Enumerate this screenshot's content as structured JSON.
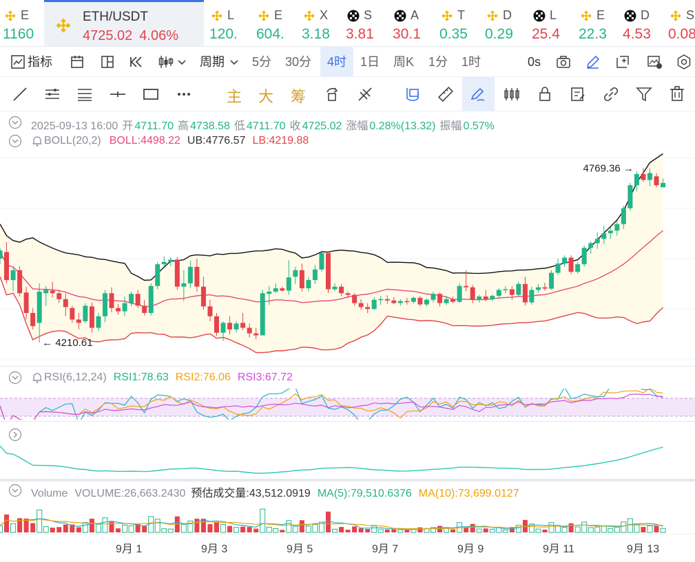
{
  "ticker": [
    {
      "name": "E",
      "price": "1160",
      "dir": "up",
      "icon": "bnb-icon"
    },
    {
      "name": "ETH/USDT",
      "price": "4725.02",
      "change": "4.06%",
      "dir": "dn",
      "icon": "bnb-icon",
      "active": true
    },
    {
      "name": "L",
      "price": "120.",
      "dir": "up",
      "icon": "bnb-icon"
    },
    {
      "name": "E",
      "price": "604.",
      "dir": "up",
      "icon": "bnb-icon"
    },
    {
      "name": "X",
      "price": "3.18",
      "dir": "up",
      "icon": "bnb-icon"
    },
    {
      "name": "S",
      "price": "3.81",
      "dir": "dn",
      "icon": "okx-icon"
    },
    {
      "name": "A",
      "price": "30.1",
      "dir": "dn",
      "icon": "okx-icon"
    },
    {
      "name": "T",
      "price": "0.35",
      "dir": "up",
      "icon": "bnb-icon"
    },
    {
      "name": "D",
      "price": "0.29",
      "dir": "up",
      "icon": "bnb-icon"
    },
    {
      "name": "L",
      "price": "25.4",
      "dir": "dn",
      "icon": "okx-icon"
    },
    {
      "name": "E",
      "price": "22.3",
      "dir": "up",
      "icon": "bnb-icon"
    },
    {
      "name": "D",
      "price": "4.53",
      "dir": "dn",
      "icon": "okx-icon"
    },
    {
      "name": "S",
      "price": "0.08",
      "dir": "dn",
      "icon": "bnb-icon"
    }
  ],
  "toolbar": {
    "indicators": "指标",
    "period": "周期",
    "intervals": [
      "5分",
      "30分",
      "4时",
      "1日",
      "周K",
      "1分",
      "1时"
    ],
    "selected_interval": "4时",
    "countdown": "0s"
  },
  "draw_tools": {
    "main": "主",
    "big": "大",
    "chips": "筹"
  },
  "ohlc": {
    "datetime": "2025-09-13 16:00",
    "open_label": "开",
    "open": "4711.70",
    "high_label": "高",
    "high": "4738.58",
    "low_label": "低",
    "low": "4711.70",
    "close_label": "收",
    "close": "4725.02",
    "change_label": "涨幅",
    "change": "0.28%(13.32)",
    "amp_label": "振幅",
    "amp": "0.57%"
  },
  "boll": {
    "name": "BOLL(20,2)",
    "mid": "BOLL:4498.22",
    "ub": "UB:4776.57",
    "lb": "LB:4219.88"
  },
  "annotations": {
    "high": "4769.36",
    "low": "4210.61"
  },
  "rsi": {
    "name": "RSI(6,12,24)",
    "rsi1": "RSI1:78.63",
    "rsi2": "RSI2:76.06",
    "rsi3": "RSI3:67.72"
  },
  "volume": {
    "name": "Volume",
    "value": "VOLUME:26,663.2430",
    "estimate": "预估成交量:43,512.0919",
    "ma5": "MA(5):79,510.6376",
    "ma10": "MA(10):73,699.0127"
  },
  "colors": {
    "up": "#23b58a",
    "down": "#e6424c",
    "accent": "#3b73e6",
    "mid": "#e8497f",
    "band": "#fffbe8"
  },
  "chart_data": {
    "type": "candlestick",
    "ylim": [
      4190,
      4800
    ],
    "date_labels": [
      "9月 1",
      "9月 3",
      "9月 5",
      "9月 7",
      "9月 9",
      "9月 11",
      "9月 13"
    ],
    "candles": [
      [
        4495,
        4528,
        4478,
        4520
      ],
      [
        4515,
        4545,
        4420,
        4430
      ],
      [
        4430,
        4468,
        4396,
        4460
      ],
      [
        4460,
        4472,
        4380,
        4390
      ],
      [
        4392,
        4410,
        4310,
        4330
      ],
      [
        4330,
        4345,
        4280,
        4290
      ],
      [
        4300,
        4420,
        4240,
        4395
      ],
      [
        4390,
        4412,
        4352,
        4400
      ],
      [
        4398,
        4425,
        4378,
        4390
      ],
      [
        4390,
        4400,
        4360,
        4372
      ],
      [
        4372,
        4390,
        4320,
        4348
      ],
      [
        4345,
        4352,
        4300,
        4310
      ],
      [
        4310,
        4330,
        4280,
        4300
      ],
      [
        4305,
        4360,
        4298,
        4352
      ],
      [
        4350,
        4362,
        4270,
        4285
      ],
      [
        4285,
        4330,
        4275,
        4320
      ],
      [
        4320,
        4400,
        4302,
        4390
      ],
      [
        4390,
        4408,
        4332,
        4345
      ],
      [
        4345,
        4358,
        4325,
        4335
      ],
      [
        4335,
        4380,
        4320,
        4360
      ],
      [
        4360,
        4395,
        4350,
        4388
      ],
      [
        4388,
        4400,
        4345,
        4352
      ],
      [
        4352,
        4370,
        4322,
        4330
      ],
      [
        4330,
        4420,
        4322,
        4412
      ],
      [
        4412,
        4485,
        4402,
        4478
      ],
      [
        4478,
        4502,
        4470,
        4485
      ],
      [
        4485,
        4500,
        4472,
        4492
      ],
      [
        4492,
        4500,
        4400,
        4410
      ],
      [
        4410,
        4460,
        4365,
        4420
      ],
      [
        4420,
        4488,
        4405,
        4470
      ],
      [
        4470,
        4495,
        4395,
        4410
      ],
      [
        4410,
        4440,
        4340,
        4350
      ],
      [
        4350,
        4370,
        4305,
        4320
      ],
      [
        4320,
        4330,
        4260,
        4270
      ],
      [
        4270,
        4305,
        4245,
        4300
      ],
      [
        4300,
        4320,
        4265,
        4280
      ],
      [
        4280,
        4305,
        4270,
        4298
      ],
      [
        4300,
        4330,
        4278,
        4285
      ],
      [
        4285,
        4298,
        4255,
        4268
      ],
      [
        4268,
        4285,
        4250,
        4262
      ],
      [
        4262,
        4400,
        4262,
        4390
      ],
      [
        4388,
        4412,
        4355,
        4395
      ],
      [
        4395,
        4420,
        4390,
        4405
      ],
      [
        4405,
        4410,
        4395,
        4398
      ],
      [
        4398,
        4490,
        4385,
        4438
      ],
      [
        4440,
        4470,
        4418,
        4460
      ],
      [
        4460,
        4480,
        4395,
        4405
      ],
      [
        4405,
        4440,
        4395,
        4430
      ],
      [
        4430,
        4475,
        4418,
        4462
      ],
      [
        4462,
        4520,
        4455,
        4512
      ],
      [
        4512,
        4518,
        4390,
        4402
      ],
      [
        4402,
        4420,
        4396,
        4410
      ],
      [
        4410,
        4418,
        4380,
        4390
      ],
      [
        4390,
        4395,
        4375,
        4385
      ],
      [
        4385,
        4390,
        4352,
        4360
      ],
      [
        4360,
        4372,
        4340,
        4348
      ],
      [
        4348,
        4360,
        4330,
        4342
      ],
      [
        4342,
        4378,
        4338,
        4370
      ],
      [
        4370,
        4382,
        4355,
        4372
      ],
      [
        4372,
        4384,
        4358,
        4368
      ],
      [
        4368,
        4378,
        4356,
        4360
      ],
      [
        4360,
        4372,
        4352,
        4366
      ],
      [
        4366,
        4376,
        4355,
        4364
      ],
      [
        4364,
        4380,
        4358,
        4376
      ],
      [
        4376,
        4382,
        4350,
        4356
      ],
      [
        4356,
        4375,
        4350,
        4370
      ],
      [
        4370,
        4395,
        4362,
        4388
      ],
      [
        4388,
        4392,
        4350,
        4360
      ],
      [
        4360,
        4382,
        4354,
        4372
      ],
      [
        4372,
        4380,
        4360,
        4364
      ],
      [
        4364,
        4420,
        4360,
        4412
      ],
      [
        4412,
        4460,
        4396,
        4408
      ],
      [
        4408,
        4415,
        4360,
        4370
      ],
      [
        4370,
        4385,
        4362,
        4380
      ],
      [
        4380,
        4400,
        4365,
        4372
      ],
      [
        4372,
        4386,
        4366,
        4382
      ],
      [
        4382,
        4405,
        4374,
        4400
      ],
      [
        4400,
        4412,
        4390,
        4402
      ],
      [
        4402,
        4412,
        4370,
        4385
      ],
      [
        4385,
        4425,
        4380,
        4418
      ],
      [
        4418,
        4440,
        4352,
        4362
      ],
      [
        4362,
        4410,
        4355,
        4400
      ],
      [
        4400,
        4418,
        4392,
        4408
      ],
      [
        4408,
        4422,
        4398,
        4404
      ],
      [
        4404,
        4460,
        4400,
        4452
      ],
      [
        4452,
        4495,
        4445,
        4480
      ],
      [
        4480,
        4505,
        4470,
        4498
      ],
      [
        4498,
        4505,
        4448,
        4455
      ],
      [
        4455,
        4485,
        4450,
        4478
      ],
      [
        4478,
        4535,
        4470,
        4528
      ],
      [
        4528,
        4548,
        4510,
        4542
      ],
      [
        4542,
        4575,
        4525,
        4555
      ],
      [
        4555,
        4595,
        4540,
        4572
      ],
      [
        4572,
        4590,
        4555,
        4580
      ],
      [
        4580,
        4610,
        4565,
        4600
      ],
      [
        4600,
        4655,
        4585,
        4648
      ],
      [
        4648,
        4725,
        4640,
        4718
      ],
      [
        4718,
        4760,
        4700,
        4752
      ],
      [
        4752,
        4770,
        4728,
        4734
      ],
      [
        4734,
        4769,
        4715,
        4755
      ],
      [
        4745,
        4755,
        4712,
        4718
      ],
      [
        4711.7,
        4738.58,
        4711.7,
        4725.02
      ]
    ]
  }
}
